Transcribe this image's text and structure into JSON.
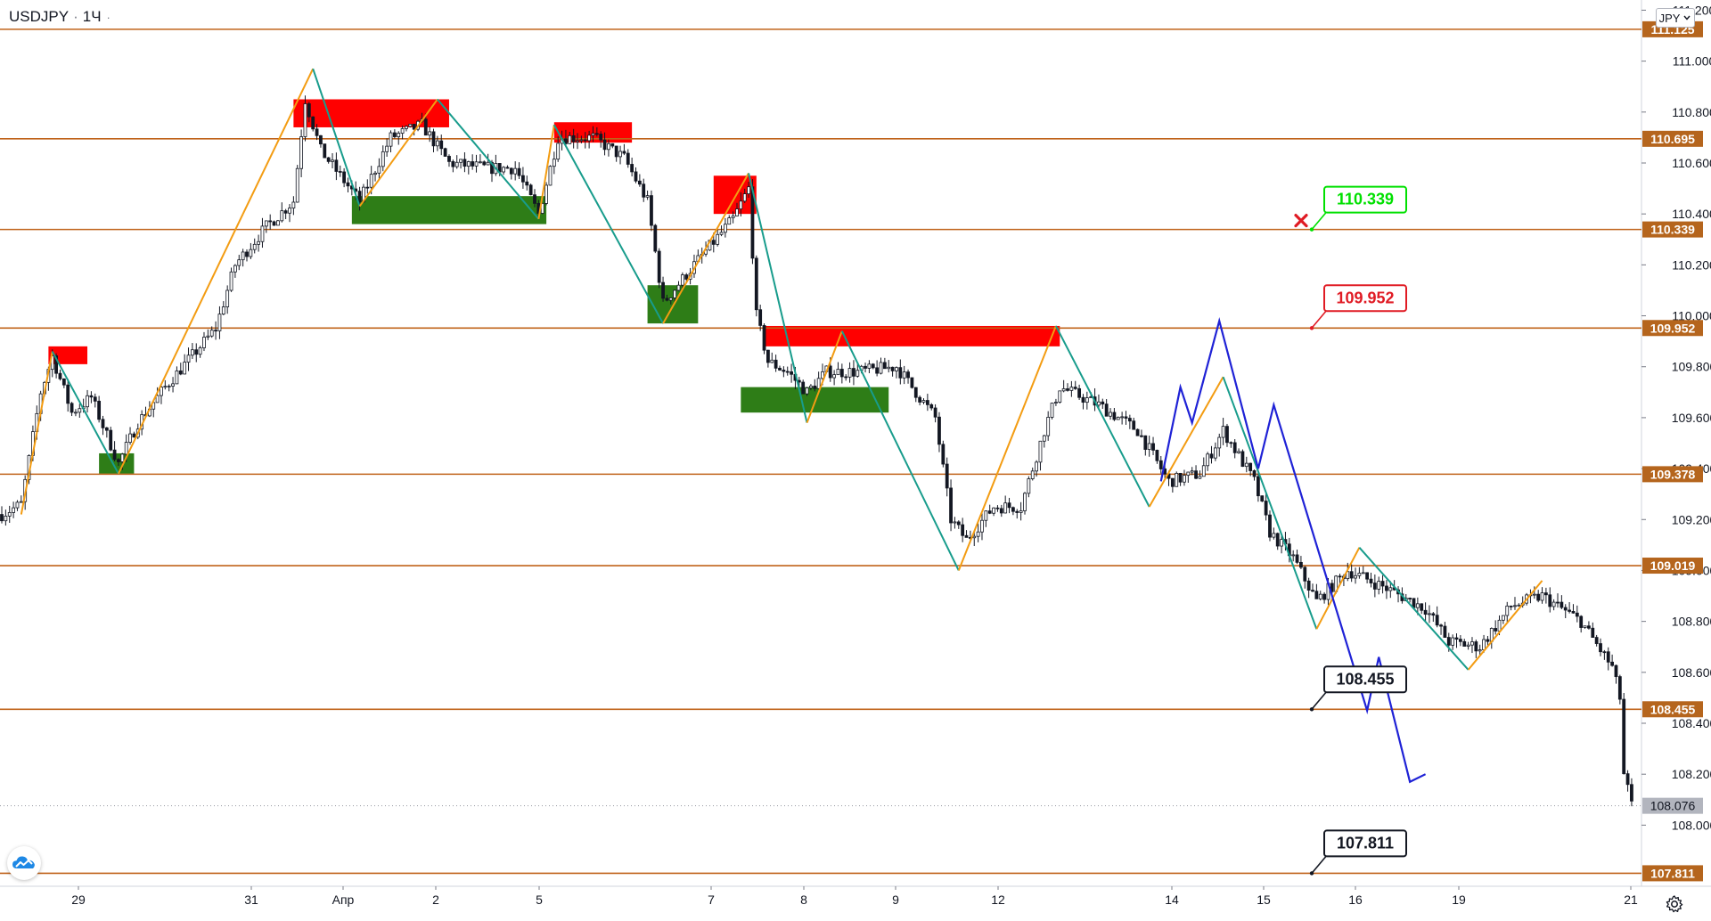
{
  "header": {
    "symbol": "USDJPY",
    "interval": "1Ч"
  },
  "currency_button": {
    "label": "JPY"
  },
  "icons": {
    "settings": "gear-icon",
    "logo": "tradingview-logo",
    "chevron": "chevron-down-icon",
    "target_hit": "red-cross-icon"
  },
  "colors": {
    "level_line": "#c0631a",
    "price_tag_bg": "#b5651d",
    "bull_candle": "#ffffff",
    "bear_candle": "#131722",
    "supply_zone": "#ff0000",
    "demand_zone": "#2e7d17",
    "zigzag_up": "#f39c12",
    "zigzag_down": "#189c8c",
    "projection": "#1f22d6",
    "label_green": "#00e000",
    "label_red": "#e01b24",
    "label_black": "#131722",
    "last_price_bg": "#b2b5be"
  },
  "chart_data": {
    "type": "candlestick",
    "symbol": "USDJPY",
    "timeframe": "1Ч",
    "x_ticks": [
      "29",
      "31",
      "Апр",
      "2",
      "5",
      "7",
      "8",
      "9",
      "12",
      "14",
      "15",
      "16",
      "19",
      "21"
    ],
    "y_ticks": [
      "111.200",
      "111.000",
      "110.800",
      "110.600",
      "110.400",
      "110.200",
      "110.000",
      "109.800",
      "109.600",
      "109.400",
      "109.200",
      "109.000",
      "108.800",
      "108.600",
      "108.400",
      "108.200",
      "108.000"
    ],
    "ylim": [
      107.76,
      111.24
    ],
    "horizontal_levels": [
      "111.125",
      "110.695",
      "110.339",
      "109.952",
      "109.378",
      "109.019",
      "108.455",
      "107.811"
    ],
    "last_price": "108.076",
    "annotations": [
      {
        "text": "110.339",
        "style": "green",
        "price": 110.339
      },
      {
        "text": "109.952",
        "style": "red",
        "price": 109.952
      },
      {
        "text": "108.455",
        "style": "black",
        "price": 108.455
      },
      {
        "text": "107.811",
        "style": "black",
        "price": 107.811
      }
    ],
    "supply_zones": [
      {
        "bars": [
          12,
          22
        ],
        "price": [
          109.81,
          109.88
        ]
      },
      {
        "bars": [
          75,
          115
        ],
        "price": [
          110.74,
          110.85
        ]
      },
      {
        "bars": [
          142,
          162
        ],
        "price": [
          110.68,
          110.76
        ]
      },
      {
        "bars": [
          183,
          194
        ],
        "price": [
          110.4,
          110.55
        ]
      },
      {
        "bars": [
          196,
          272
        ],
        "price": [
          109.88,
          109.96
        ]
      }
    ],
    "demand_zones": [
      {
        "bars": [
          25,
          34
        ],
        "price": [
          109.38,
          109.46
        ]
      },
      {
        "bars": [
          90,
          140
        ],
        "price": [
          110.36,
          110.47
        ]
      },
      {
        "bars": [
          166,
          179
        ],
        "price": [
          109.97,
          110.12
        ]
      },
      {
        "bars": [
          190,
          228
        ],
        "price": [
          109.62,
          109.72
        ]
      }
    ],
    "zigzag": [
      [
        5,
        109.22
      ],
      [
        13,
        109.86
      ],
      [
        30,
        109.38
      ],
      [
        62,
        110.4
      ],
      [
        80,
        110.97
      ],
      [
        92,
        110.43
      ],
      [
        112,
        110.85
      ],
      [
        138,
        110.38
      ],
      [
        142,
        110.75
      ],
      [
        170,
        109.97
      ],
      [
        192,
        110.56
      ],
      [
        207,
        109.58
      ],
      [
        216,
        109.94
      ],
      [
        246,
        109.0
      ],
      [
        271,
        109.96
      ],
      [
        295,
        109.25
      ],
      [
        314,
        109.76
      ],
      [
        338,
        108.77
      ],
      [
        349,
        109.09
      ],
      [
        377,
        108.61
      ],
      [
        396,
        108.96
      ]
    ],
    "projection": [
      [
        298,
        109.35
      ],
      [
        303,
        109.72
      ],
      [
        306,
        109.58
      ],
      [
        313,
        109.98
      ],
      [
        323,
        109.4
      ],
      [
        327,
        109.65
      ],
      [
        351,
        108.45
      ],
      [
        354,
        108.66
      ],
      [
        362,
        108.17
      ],
      [
        366,
        108.2
      ]
    ],
    "candles": {
      "count": 420,
      "anchors": [
        [
          0,
          109.22
        ],
        [
          5,
          109.26
        ],
        [
          10,
          109.7
        ],
        [
          13,
          109.84
        ],
        [
          18,
          109.62
        ],
        [
          23,
          109.68
        ],
        [
          30,
          109.42
        ],
        [
          35,
          109.58
        ],
        [
          42,
          109.72
        ],
        [
          55,
          109.95
        ],
        [
          60,
          110.2
        ],
        [
          68,
          110.35
        ],
        [
          75,
          110.45
        ],
        [
          78,
          110.85
        ],
        [
          82,
          110.65
        ],
        [
          92,
          110.45
        ],
        [
          100,
          110.7
        ],
        [
          108,
          110.75
        ],
        [
          115,
          110.6
        ],
        [
          125,
          110.58
        ],
        [
          132,
          110.58
        ],
        [
          138,
          110.4
        ],
        [
          143,
          110.7
        ],
        [
          152,
          110.7
        ],
        [
          160,
          110.62
        ],
        [
          166,
          110.45
        ],
        [
          170,
          110.05
        ],
        [
          178,
          110.2
        ],
        [
          188,
          110.38
        ],
        [
          192,
          110.5
        ],
        [
          194,
          110.0
        ],
        [
          197,
          109.82
        ],
        [
          202,
          109.78
        ],
        [
          207,
          109.7
        ],
        [
          212,
          109.78
        ],
        [
          220,
          109.78
        ],
        [
          230,
          109.8
        ],
        [
          240,
          109.6
        ],
        [
          244,
          109.2
        ],
        [
          248,
          109.12
        ],
        [
          255,
          109.25
        ],
        [
          262,
          109.25
        ],
        [
          268,
          109.55
        ],
        [
          272,
          109.72
        ],
        [
          282,
          109.65
        ],
        [
          292,
          109.55
        ],
        [
          300,
          109.35
        ],
        [
          308,
          109.38
        ],
        [
          314,
          109.55
        ],
        [
          318,
          109.45
        ],
        [
          322,
          109.35
        ],
        [
          326,
          109.15
        ],
        [
          332,
          109.05
        ],
        [
          338,
          108.88
        ],
        [
          346,
          109.0
        ],
        [
          356,
          108.93
        ],
        [
          366,
          108.85
        ],
        [
          372,
          108.72
        ],
        [
          380,
          108.7
        ],
        [
          388,
          108.86
        ],
        [
          396,
          108.9
        ],
        [
          406,
          108.8
        ],
        [
          414,
          108.62
        ],
        [
          416,
          108.5
        ],
        [
          417,
          108.2
        ],
        [
          419,
          108.08
        ]
      ]
    }
  }
}
